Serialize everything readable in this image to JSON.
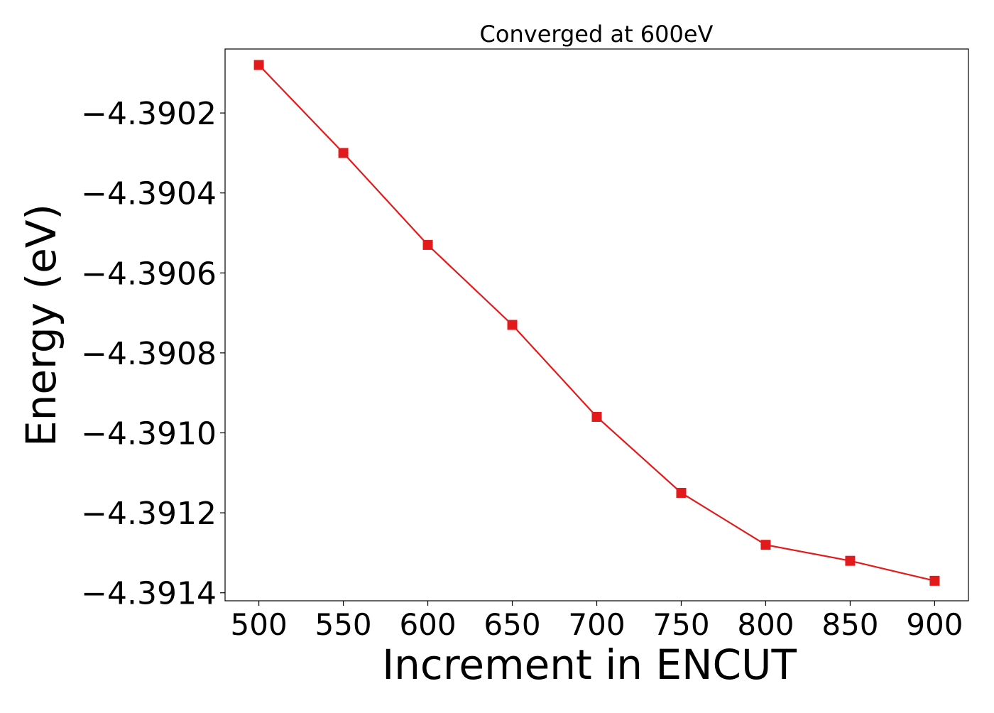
{
  "chart_data": {
    "type": "line",
    "title": "Converged at 600eV",
    "xlabel": "Increment in ENCUT",
    "ylabel": "Energy (eV)",
    "x": [
      500,
      550,
      600,
      650,
      700,
      750,
      800,
      850,
      900
    ],
    "series": [
      {
        "values": [
          -4.39008,
          -4.3903,
          -4.39053,
          -4.39073,
          -4.39096,
          -4.39115,
          -4.39128,
          -4.39132,
          -4.39137
        ],
        "color": "#e31a1c",
        "marker": "square"
      }
    ],
    "xticks": [
      500,
      550,
      600,
      650,
      700,
      750,
      800,
      850,
      900
    ],
    "xtick_labels": [
      "500",
      "550",
      "600",
      "650",
      "700",
      "750",
      "800",
      "850",
      "900"
    ],
    "yticks": [
      -4.3902,
      -4.3904,
      -4.3906,
      -4.3908,
      -4.391,
      -4.3912,
      -4.3914
    ],
    "ytick_labels": [
      "−4.3902",
      "−4.3904",
      "−4.3906",
      "−4.3908",
      "−4.3910",
      "−4.3912",
      "−4.3914"
    ],
    "xlim": [
      480,
      920
    ],
    "ylim": [
      -4.39142,
      -4.39004
    ],
    "grid": false
  }
}
